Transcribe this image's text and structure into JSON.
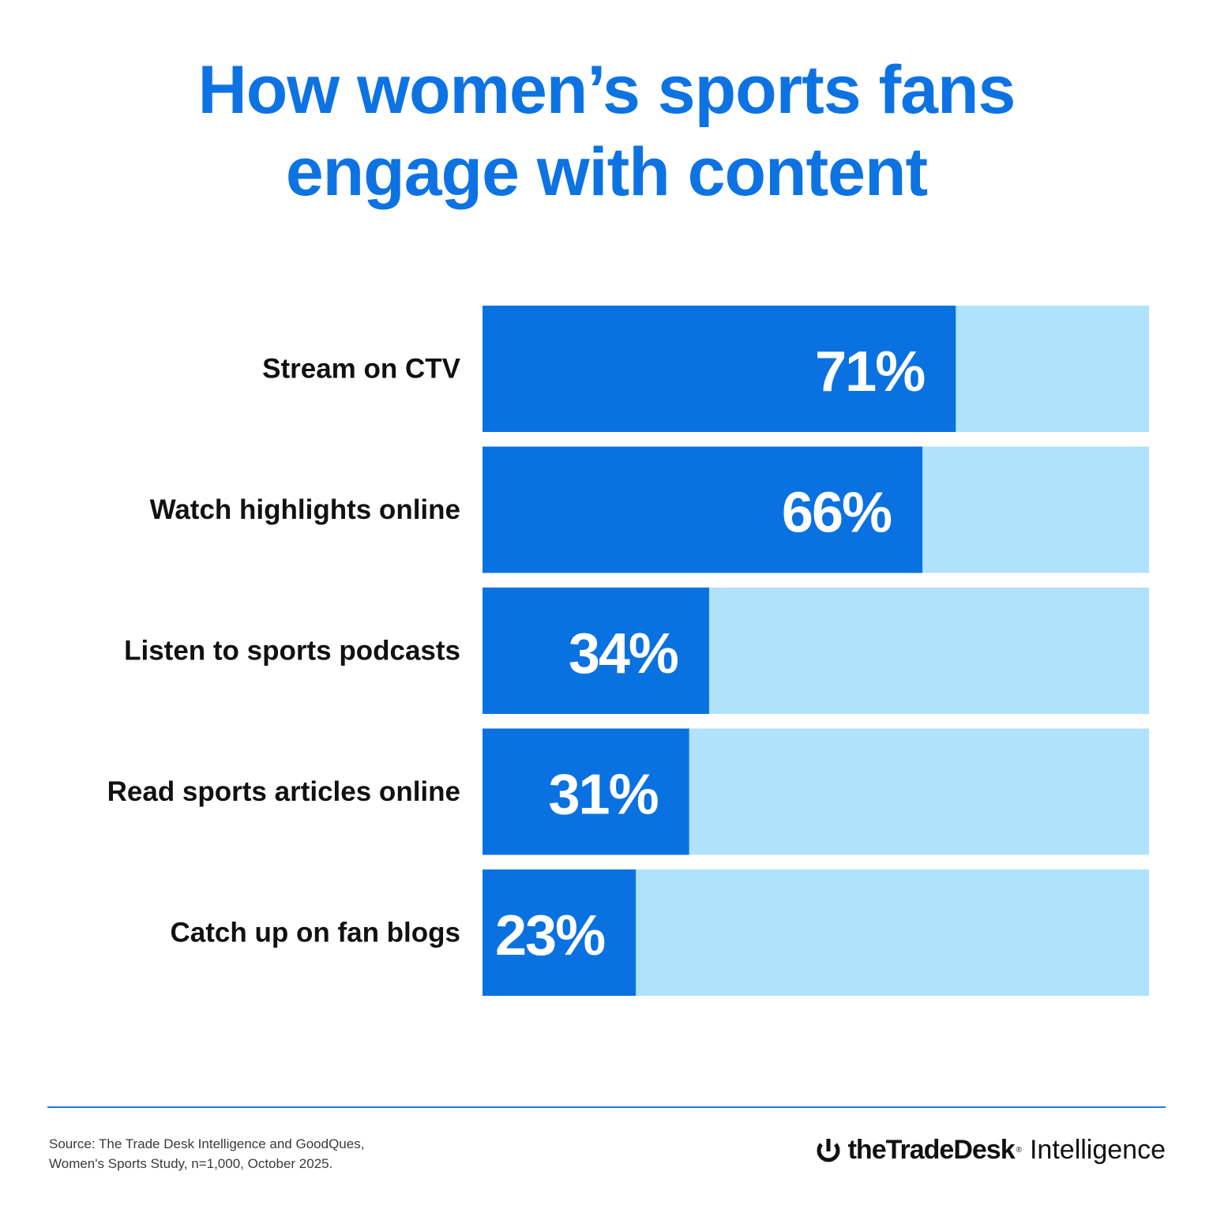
{
  "colors": {
    "title": "#0E73E2",
    "bar_fill": "#0A72E0",
    "bar_track": "#B0E2FC",
    "label_text": "#111111",
    "value_text": "#FFFFFF",
    "footer_rule": "#1E7BE6"
  },
  "chart_data": {
    "type": "bar",
    "orientation": "horizontal",
    "title_lines": [
      "How women’s sports fans",
      "engage with content"
    ],
    "categories": [
      "Stream on CTV",
      "Watch highlights online",
      "Listen to sports podcasts",
      "Read sports articles online",
      "Catch up on fan blogs"
    ],
    "values": [
      71,
      66,
      34,
      31,
      23
    ],
    "value_labels": [
      "71%",
      "66%",
      "34%",
      "31%",
      "23%"
    ],
    "xlim": [
      0,
      100
    ],
    "unit": "%",
    "grid": false,
    "legend": false
  },
  "footer": {
    "source_lines": [
      "Source: The Trade Desk Intelligence and GoodQues,",
      "Women's Sports Study, n=1,000, October 2025."
    ],
    "logo": {
      "icon": "trade-desk-logo-icon",
      "brand": "theTradeDesk",
      "registered": "®",
      "suffix": "Intelligence"
    }
  }
}
